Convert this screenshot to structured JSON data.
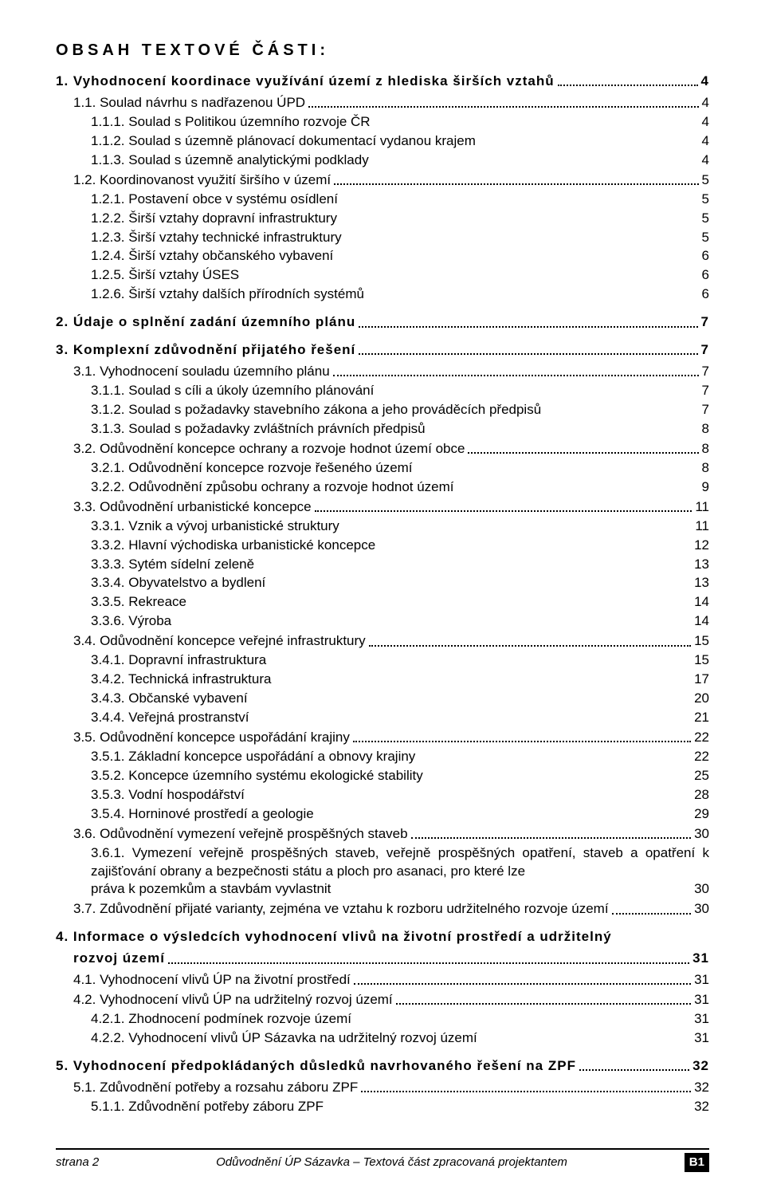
{
  "title": "OBSAH TEXTOVÉ ČÁSTI:",
  "toc": [
    {
      "lvl": "l1",
      "txt": "1. Vyhodnocení koordinace využívání území z hlediska širších vztahů",
      "pg": "4",
      "leader": true
    },
    {
      "lvl": "l2",
      "txt": "1.1. Soulad návrhu s nadřazenou ÚPD",
      "pg": "4",
      "leader": true
    },
    {
      "lvl": "l3n",
      "txt": "1.1.1. Soulad s Politikou územního rozvoje ČR",
      "pg": "4"
    },
    {
      "lvl": "l3n",
      "txt": "1.1.2. Soulad s územně plánovací dokumentací vydanou krajem",
      "pg": "4"
    },
    {
      "lvl": "l3n",
      "txt": "1.1.3. Soulad s územně analytickými podklady",
      "pg": "4"
    },
    {
      "lvl": "l2",
      "txt": "1.2. Koordinovanost využití širšího v území",
      "pg": "5",
      "leader": true
    },
    {
      "lvl": "l3n",
      "txt": "1.2.1. Postavení obce v systému osídlení",
      "pg": "5"
    },
    {
      "lvl": "l3n",
      "txt": "1.2.2. Širší vztahy dopravní infrastruktury",
      "pg": "5"
    },
    {
      "lvl": "l3n",
      "txt": "1.2.3. Širší vztahy technické infrastruktury",
      "pg": "5"
    },
    {
      "lvl": "l3n",
      "txt": "1.2.4. Širší vztahy občanského vybavení",
      "pg": "6"
    },
    {
      "lvl": "l3n",
      "txt": "1.2.5. Širší vztahy ÚSES",
      "pg": "6"
    },
    {
      "lvl": "l3n",
      "txt": "1.2.6. Širší vztahy dalších přírodních systémů",
      "pg": "6"
    },
    {
      "lvl": "l1",
      "txt": "2. Údaje o splnění zadání územního plánu",
      "pg": "7",
      "leader": true
    },
    {
      "lvl": "l1",
      "txt": "3. Komplexní zdůvodnění přijatého řešení",
      "pg": "7",
      "leader": true
    },
    {
      "lvl": "l2",
      "txt": "3.1. Vyhodnocení souladu územního plánu",
      "pg": "7",
      "leader": true
    },
    {
      "lvl": "l3n",
      "txt": "3.1.1. Soulad s cíli a úkoly územního plánování",
      "pg": "7"
    },
    {
      "lvl": "l3n",
      "txt": "3.1.2. Soulad s požadavky stavebního zákona a jeho prováděcích předpisů",
      "pg": "7"
    },
    {
      "lvl": "l3n",
      "txt": "3.1.3. Soulad s požadavky zvláštních právních předpisů",
      "pg": "8"
    },
    {
      "lvl": "l2",
      "txt": "3.2. Odůvodnění koncepce ochrany a rozvoje hodnot území obce",
      "pg": "8",
      "leader": true
    },
    {
      "lvl": "l3n",
      "txt": "3.2.1. Odůvodnění koncepce rozvoje řešeného území",
      "pg": "8"
    },
    {
      "lvl": "l3n",
      "txt": "3.2.2. Odůvodnění způsobu ochrany a rozvoje hodnot území",
      "pg": "9"
    },
    {
      "lvl": "l2",
      "txt": "3.3. Odůvodnění urbanistické koncepce",
      "pg": "11",
      "leader": true
    },
    {
      "lvl": "l3n",
      "txt": "3.3.1. Vznik a vývoj urbanistické struktury",
      "pg": "11"
    },
    {
      "lvl": "l3n",
      "txt": "3.3.2. Hlavní východiska urbanistické koncepce",
      "pg": "12"
    },
    {
      "lvl": "l3n",
      "txt": "3.3.3. Sytém sídelní zeleně",
      "pg": "13"
    },
    {
      "lvl": "l3n",
      "txt": "3.3.4. Obyvatelstvo a bydlení",
      "pg": "13"
    },
    {
      "lvl": "l3n",
      "txt": "3.3.5. Rekreace",
      "pg": "14"
    },
    {
      "lvl": "l3n",
      "txt": "3.3.6. Výroba",
      "pg": "14"
    },
    {
      "lvl": "l2",
      "txt": "3.4. Odůvodnění koncepce veřejné infrastruktury",
      "pg": "15",
      "leader": true
    },
    {
      "lvl": "l3n",
      "txt": "3.4.1. Dopravní infrastruktura",
      "pg": "15"
    },
    {
      "lvl": "l3n",
      "txt": "3.4.2. Technická infrastruktura",
      "pg": "17"
    },
    {
      "lvl": "l3n",
      "txt": "3.4.3. Občanské vybavení",
      "pg": "20"
    },
    {
      "lvl": "l3n",
      "txt": "3.4.4. Veřejná prostranství",
      "pg": "21"
    },
    {
      "lvl": "l2",
      "txt": "3.5. Odůvodnění koncepce uspořádání krajiny",
      "pg": "22",
      "leader": true
    },
    {
      "lvl": "l3n",
      "txt": "3.5.1. Základní koncepce uspořádání a obnovy krajiny",
      "pg": "22"
    },
    {
      "lvl": "l3n",
      "txt": "3.5.2. Koncepce územního systému ekologické stability",
      "pg": "25"
    },
    {
      "lvl": "l3n",
      "txt": "3.5.3. Vodní hospodářství",
      "pg": "28"
    },
    {
      "lvl": "l3n",
      "txt": "3.5.4. Horninové prostředí a geologie",
      "pg": "29"
    },
    {
      "lvl": "l2",
      "txt": "3.6. Odůvodnění vymezení veřejně prospěšných staveb",
      "pg": "30",
      "leader": true
    },
    {
      "lvl": "l3j",
      "body": "3.6.1. Vymezení veřejně prospěšných staveb, veřejně prospěšných opatření, staveb a opatření k zajišťování obrany a bezpečnosti státu a ploch pro asanaci, pro které lze",
      "last": "práva k pozemkům a stavbám vyvlastnit",
      "pg": "30"
    },
    {
      "lvl": "l2",
      "txt": "3.7. Zdůvodnění přijaté varianty, zejména ve vztahu k rozboru udržitelného rozvoje území",
      "pg": "30",
      "leader": true
    },
    {
      "lvl": "l1",
      "txt": "4. Informace o výsledcích vyhodnocení vlivů na životní prostředí a udržitelný",
      "pg": "",
      "leader": false,
      "cont": "rozvoj území",
      "contpg": "31"
    },
    {
      "lvl": "l2",
      "txt": "4.1. Vyhodnocení vlivů ÚP na životní prostředí",
      "pg": "31",
      "leader": true
    },
    {
      "lvl": "l2",
      "txt": "4.2. Vyhodnocení vlivů ÚP na udržitelný rozvoj území",
      "pg": "31",
      "leader": true
    },
    {
      "lvl": "l3n",
      "txt": "4.2.1. Zhodnocení podmínek rozvoje území",
      "pg": "31"
    },
    {
      "lvl": "l3n",
      "txt": "4.2.2. Vyhodnocení vlivů ÚP Sázavka na udržitelný rozvoj území",
      "pg": "31"
    },
    {
      "lvl": "l1",
      "txt": "5. Vyhodnocení předpokládaných důsledků navrhovaného řešení na ZPF",
      "pg": "32",
      "leader": true
    },
    {
      "lvl": "l2",
      "txt": "5.1. Zdůvodnění potřeby a rozsahu záboru ZPF",
      "pg": "32",
      "leader": true
    },
    {
      "lvl": "l3n",
      "txt": "5.1.1. Zdůvodnění potřeby záboru ZPF",
      "pg": "32"
    }
  ],
  "footer": {
    "left": "strana 2",
    "center": "Odůvodnění ÚP Sázavka – Textová část zpracovaná projektantem",
    "badge": "B1"
  }
}
